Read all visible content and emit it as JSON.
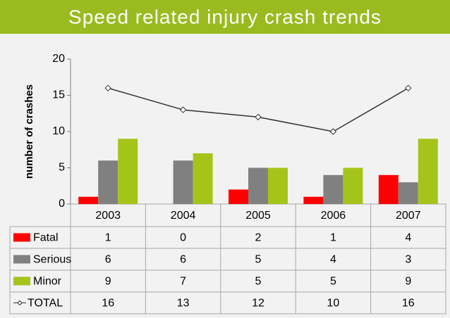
{
  "chart_data": {
    "type": "bar",
    "title": "Speed related injury crash trends",
    "y_label": "number of crashes",
    "categories": [
      "2003",
      "2004",
      "2005",
      "2006",
      "2007"
    ],
    "series": [
      {
        "name": "Fatal",
        "color": "#ff0000",
        "type": "bar",
        "values": [
          1,
          0,
          2,
          1,
          4
        ]
      },
      {
        "name": "Serious",
        "color": "#808080",
        "type": "bar",
        "values": [
          6,
          6,
          5,
          4,
          3
        ]
      },
      {
        "name": "Minor",
        "color": "#a5c41a",
        "type": "bar",
        "values": [
          9,
          7,
          5,
          5,
          9
        ]
      },
      {
        "name": "TOTAL",
        "color": "#333333",
        "type": "line",
        "values": [
          16,
          13,
          12,
          10,
          16
        ]
      }
    ],
    "ylim": [
      0,
      20
    ],
    "yticks": [
      0,
      5,
      10,
      15,
      20
    ]
  }
}
